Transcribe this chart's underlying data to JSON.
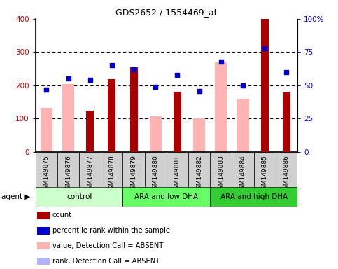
{
  "title": "GDS2652 / 1554469_at",
  "samples": [
    "GSM149875",
    "GSM149876",
    "GSM149877",
    "GSM149878",
    "GSM149879",
    "GSM149880",
    "GSM149881",
    "GSM149882",
    "GSM149883",
    "GSM149884",
    "GSM149885",
    "GSM149886"
  ],
  "count_values": [
    0,
    0,
    125,
    218,
    255,
    0,
    180,
    0,
    0,
    0,
    400,
    180
  ],
  "rank_pct": [
    47,
    55,
    54,
    65,
    62,
    49,
    58,
    46,
    68,
    50,
    78,
    60
  ],
  "pink_bar_values": [
    133,
    205,
    0,
    0,
    0,
    108,
    0,
    100,
    270,
    160,
    0,
    0
  ],
  "absent_rank_pct": [
    47,
    0,
    0,
    0,
    0,
    0,
    0,
    46,
    0,
    50,
    0,
    0
  ],
  "groups": [
    {
      "label": "control",
      "start": 0,
      "end": 4
    },
    {
      "label": "ARA and low DHA",
      "start": 4,
      "end": 8
    },
    {
      "label": "ARA and high DHA",
      "start": 8,
      "end": 12
    }
  ],
  "group_colors": [
    "#ccffcc",
    "#66ff66",
    "#33cc33"
  ],
  "ylim_left": [
    0,
    400
  ],
  "ylim_right": [
    0,
    100
  ],
  "left_yticks": [
    0,
    100,
    200,
    300,
    400
  ],
  "right_yticks": [
    0,
    25,
    50,
    75,
    100
  ],
  "right_yticklabels": [
    "0",
    "25",
    "50",
    "75",
    "100%"
  ],
  "count_color": "#aa0000",
  "rank_color": "#0000cc",
  "pink_color": "#ffb3b3",
  "absent_rank_color": "#b3b3ff",
  "legend_labels": [
    "count",
    "percentile rank within the sample",
    "value, Detection Call = ABSENT",
    "rank, Detection Call = ABSENT"
  ],
  "legend_colors": [
    "#aa0000",
    "#0000cc",
    "#ffb3b3",
    "#b3b3ff"
  ]
}
